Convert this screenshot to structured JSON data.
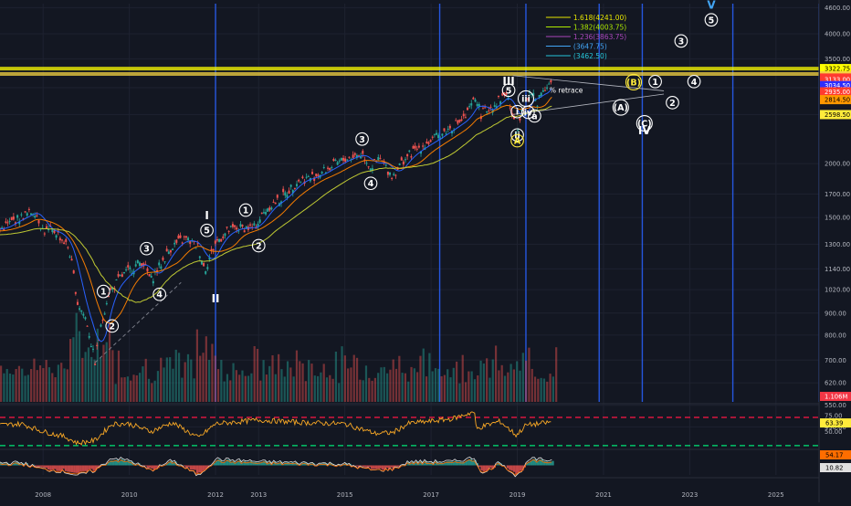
{
  "chart_data": {
    "type": "line",
    "title": "",
    "price_axis": {
      "scale": "log",
      "range": [
        560,
        4700
      ],
      "ticks": [
        "4600.00",
        "4000.00",
        "3500.00",
        "3000.00",
        "2600.00",
        "2000.00",
        "1700.00",
        "1500.00",
        "1300.00",
        "1140.00",
        "1020.00",
        "900.00",
        "800.00",
        "700.00",
        "620.00",
        "550.00",
        "490.00"
      ]
    },
    "rsi_axis": {
      "range": [
        25,
        82
      ],
      "ticks": [
        "75.00",
        "50.00"
      ]
    },
    "time_axis": {
      "range": [
        2007.0,
        2026.0
      ],
      "ticks": [
        {
          "label": "2008",
          "year": 2008.0
        },
        {
          "label": "2010",
          "year": 2010.0
        },
        {
          "label": "2012",
          "year": 2012.0
        },
        {
          "label": "2013",
          "year": 2013.0
        },
        {
          "label": "2015",
          "year": 2015.0
        },
        {
          "label": "2017",
          "year": 2017.0
        },
        {
          "label": "2019",
          "year": 2019.0
        },
        {
          "label": "2021",
          "year": 2021.0
        },
        {
          "label": "2023",
          "year": 2023.0
        },
        {
          "label": "2025",
          "year": 2025.0
        }
      ]
    },
    "price_series": {
      "name": "",
      "x": [
        2007.0,
        2007.3,
        2007.6,
        2007.8,
        2008.0,
        2008.3,
        2008.6,
        2008.8,
        2009.0,
        2009.2,
        2009.5,
        2009.8,
        2010.0,
        2010.3,
        2010.5,
        2010.8,
        2011.0,
        2011.3,
        2011.6,
        2011.75,
        2012.0,
        2012.3,
        2012.6,
        2012.9,
        2013.2,
        2013.5,
        2013.9,
        2014.3,
        2014.7,
        2015.0,
        2015.4,
        2015.6,
        2015.8,
        2016.1,
        2016.4,
        2016.7,
        2017.0,
        2017.4,
        2017.8,
        2018.05,
        2018.15,
        2018.5,
        2018.75,
        2018.98,
        2019.1,
        2019.35,
        2019.45,
        2019.6,
        2019.8
      ],
      "y": [
        1410,
        1470,
        1520,
        1560,
        1400,
        1390,
        1270,
        950,
        870,
        690,
        990,
        1090,
        1130,
        1190,
        1070,
        1200,
        1290,
        1340,
        1280,
        1130,
        1310,
        1400,
        1420,
        1420,
        1580,
        1650,
        1820,
        1870,
        1970,
        2050,
        2110,
        1960,
        2050,
        1870,
        2060,
        2170,
        2260,
        2400,
        2560,
        2860,
        2600,
        2760,
        2920,
        2350,
        2700,
        2930,
        2760,
        3000,
        3080
      ]
    },
    "rsi_series": {
      "x": [
        2007.0,
        2007.5,
        2008.0,
        2008.5,
        2008.8,
        2009.2,
        2009.6,
        2010.0,
        2010.5,
        2011.0,
        2011.6,
        2012.0,
        2013.0,
        2014.0,
        2015.0,
        2015.7,
        2016.1,
        2016.5,
        2017.0,
        2017.5,
        2018.0,
        2018.05,
        2018.2,
        2018.6,
        2018.98,
        2019.2,
        2019.5,
        2019.8
      ],
      "y": [
        60,
        62,
        50,
        42,
        32,
        36,
        62,
        62,
        50,
        64,
        40,
        62,
        68,
        64,
        62,
        47,
        48,
        63,
        66,
        70,
        81,
        54,
        58,
        66,
        44,
        60,
        62,
        65
      ]
    },
    "macd_hist": {
      "x": [
        2007.0,
        2007.5,
        2008.0,
        2008.5,
        2008.8,
        2009.2,
        2009.6,
        2010.0,
        2010.5,
        2011.0,
        2011.6,
        2012.0,
        2013.0,
        2014.0,
        2015.0,
        2015.7,
        2016.1,
        2016.5,
        2017.0,
        2017.5,
        2018.0,
        2018.2,
        2018.6,
        2018.98,
        2019.3,
        2019.8
      ],
      "y": [
        2,
        2,
        -3,
        -5,
        -8,
        -4,
        6,
        4,
        -4,
        4,
        -8,
        5,
        3,
        2,
        1,
        -4,
        -3,
        3,
        3,
        3,
        6,
        -7,
        3,
        -9,
        5,
        4
      ]
    },
    "horizontal_levels": [
      {
        "label": "3322.75",
        "price": 3322.75,
        "color": "#ffff00"
      },
      {
        "label": "3227.50",
        "price": 3227.5,
        "color": "#f5d442"
      },
      {
        "label": "3159.50",
        "price": 3159.5,
        "color": "#ff3b30"
      },
      {
        "label": "3133.00",
        "price": 3133.0,
        "color": "#ff3b30"
      },
      {
        "label": "3034.50",
        "price": 3034.5,
        "color": "#2d2dff"
      },
      {
        "label": "2935.00",
        "price": 2935.0,
        "color": "#ff3b30"
      },
      {
        "label": "2814.50",
        "price": 2814.5,
        "color": "#ff9800"
      },
      {
        "label": "2598.50",
        "price": 2598.5,
        "color": "#ffeb3b"
      },
      {
        "label": "1.106M",
        "price": null,
        "color": "#f23645"
      }
    ],
    "rsi_badge": {
      "label": "63.39",
      "color": "#ffeb3b"
    },
    "macd_badges": [
      {
        "label": "54.17",
        "color": "#ff6d00"
      },
      {
        "label": "10.82",
        "color": "#e0e0e0"
      }
    ],
    "fib_levels": [
      {
        "label": "1.618(4241.00)",
        "color": "#e6e600"
      },
      {
        "label": "1.382(4003.75)",
        "color": "#aeea00"
      },
      {
        "label": "1.236(3863.75)",
        "color": "#ab47bc"
      },
      {
        "label": "(3647.75)",
        "color": "#42a5f5"
      },
      {
        "label": "(3462.50)",
        "color": "#26c6da"
      }
    ],
    "annotations": {
      "retrace": "% retrace",
      "wave_labels": [
        {
          "t": "1",
          "x": 2009.4,
          "p": 1010,
          "c": "w"
        },
        {
          "t": "2",
          "x": 2009.6,
          "p": 840,
          "c": "w"
        },
        {
          "t": "3",
          "x": 2010.4,
          "p": 1270,
          "c": "w"
        },
        {
          "t": "4",
          "x": 2010.7,
          "p": 995,
          "c": "w"
        },
        {
          "t": "5",
          "x": 2011.8,
          "p": 1400,
          "c": "w"
        },
        {
          "t": "I",
          "x": 2011.8,
          "p": 1510,
          "c": "wr"
        },
        {
          "t": "II",
          "x": 2012.0,
          "p": 970,
          "c": "wr"
        },
        {
          "t": "1",
          "x": 2012.7,
          "p": 1560,
          "c": "w"
        },
        {
          "t": "2",
          "x": 2013.0,
          "p": 1290,
          "c": "w"
        },
        {
          "t": "3",
          "x": 2015.4,
          "p": 2280,
          "c": "w"
        },
        {
          "t": "4",
          "x": 2015.6,
          "p": 1800,
          "c": "w"
        },
        {
          "t": "5",
          "x": 2018.8,
          "p": 2960,
          "c": "w"
        },
        {
          "t": "III",
          "x": 2018.8,
          "p": 3100,
          "c": "wr"
        },
        {
          "t": "i",
          "x": 2019.0,
          "p": 2640,
          "c": "w"
        },
        {
          "t": "ii",
          "x": 2019.0,
          "p": 2330,
          "c": "w"
        },
        {
          "t": "A",
          "x": 2019.0,
          "p": 2260,
          "c": "y"
        },
        {
          "t": "iii",
          "x": 2019.2,
          "p": 2830,
          "c": "w"
        },
        {
          "t": "iv",
          "x": 2019.25,
          "p": 2630,
          "c": "w"
        },
        {
          "t": "a",
          "x": 2019.4,
          "p": 2580,
          "c": "w"
        },
        {
          "t": "(A)",
          "x": 2021.4,
          "p": 2700,
          "c": "w"
        },
        {
          "t": "(B)",
          "x": 2021.7,
          "p": 3090,
          "c": "y"
        },
        {
          "t": "(C)",
          "x": 2021.95,
          "p": 2480,
          "c": "w"
        },
        {
          "t": "IV",
          "x": 2021.95,
          "p": 2380,
          "c": "wr"
        },
        {
          "t": "1",
          "x": 2022.2,
          "p": 3100,
          "c": "w"
        },
        {
          "t": "2",
          "x": 2022.6,
          "p": 2770,
          "c": "w"
        },
        {
          "t": "3",
          "x": 2022.8,
          "p": 3850,
          "c": "w"
        },
        {
          "t": "4",
          "x": 2023.1,
          "p": 3100,
          "c": "w"
        },
        {
          "t": "5",
          "x": 2023.5,
          "p": 4310,
          "c": "w"
        },
        {
          "t": "V",
          "x": 2023.5,
          "p": 4650,
          "c": "b"
        }
      ]
    },
    "vertical_lines": [
      2012.0,
      2017.2,
      2019.2,
      2020.9,
      2021.9,
      2024.0,
      2026.0
    ],
    "grid": true,
    "legend": "none"
  }
}
